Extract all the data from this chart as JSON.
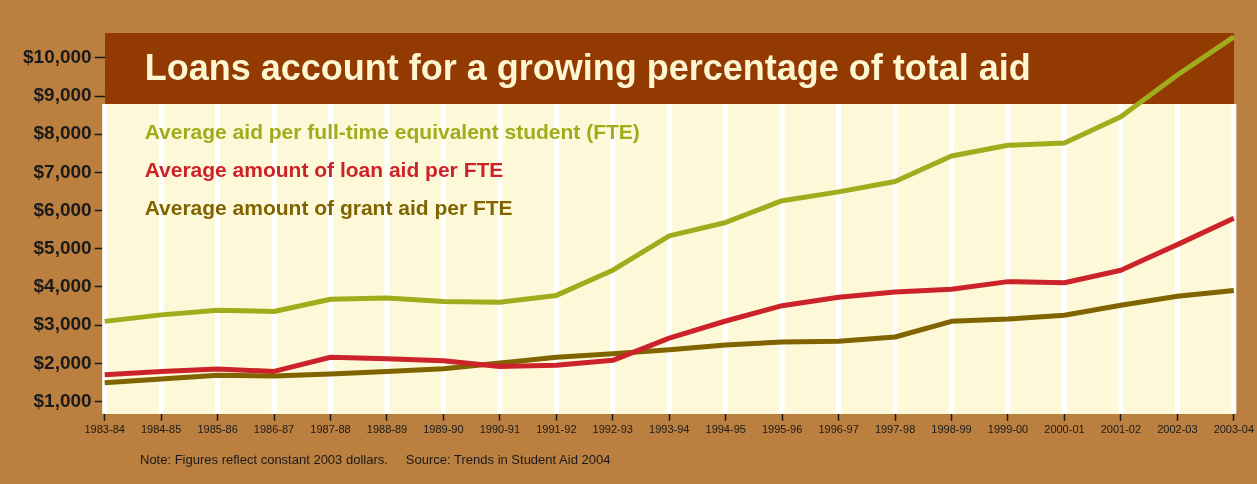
{
  "chart_data": {
    "type": "line",
    "title": "Loans account for a growing percentage of total aid",
    "categories": [
      "1983-84",
      "1984-85",
      "1985-86",
      "1986-87",
      "1987-88",
      "1988-89",
      "1989-90",
      "1990-91",
      "1991-92",
      "1992-93",
      "1993-94",
      "1994-95",
      "1995-96",
      "1996-97",
      "1997-98",
      "1998-99",
      "1999-00",
      "2000-01",
      "2001-02",
      "2002-03",
      "2003-04"
    ],
    "series": [
      {
        "name": "Average aid per full-time equivalent student (FTE)",
        "color": "#a0ac1c",
        "values": [
          3100,
          3270,
          3390,
          3360,
          3680,
          3710,
          3620,
          3600,
          3780,
          4440,
          5340,
          5690,
          6260,
          6490,
          6760,
          7430,
          7710,
          7770,
          8460,
          9550,
          10550
        ]
      },
      {
        "name": "Average amount of loan aid per FTE",
        "color": "#cc2229",
        "values": [
          1700,
          1790,
          1850,
          1790,
          2160,
          2120,
          2070,
          1920,
          1950,
          2080,
          2660,
          3110,
          3510,
          3730,
          3870,
          3940,
          4140,
          4110,
          4440,
          5110,
          5800
        ]
      },
      {
        "name": "Average amount of grant aid per FTE",
        "color": "#806400",
        "values": [
          1490,
          1590,
          1690,
          1670,
          1720,
          1790,
          1860,
          2010,
          2160,
          2250,
          2360,
          2480,
          2560,
          2580,
          2690,
          3100,
          3160,
          3260,
          3520,
          3760,
          3910
        ]
      }
    ],
    "ylim": [
      680,
      10650
    ],
    "yticks": [
      {
        "value": 1000,
        "label": "$1,000"
      },
      {
        "value": 2000,
        "label": "$2,000"
      },
      {
        "value": 3000,
        "label": "$3,000"
      },
      {
        "value": 4000,
        "label": "$4,000"
      },
      {
        "value": 5000,
        "label": "$5,000"
      },
      {
        "value": 6000,
        "label": "$6,000"
      },
      {
        "value": 7000,
        "label": "$7,000"
      },
      {
        "value": 8000,
        "label": "$8,000"
      },
      {
        "value": 9000,
        "label": "$9,000"
      },
      {
        "value": 10000,
        "label": "$10,000"
      }
    ],
    "grid": "x",
    "legend": "top left",
    "marker": "none",
    "line_style": "solid",
    "annotations": [
      "Note: Figures reflect constant 2003 dollars.",
      "Source: Trends in Student Aid 2004"
    ]
  }
}
